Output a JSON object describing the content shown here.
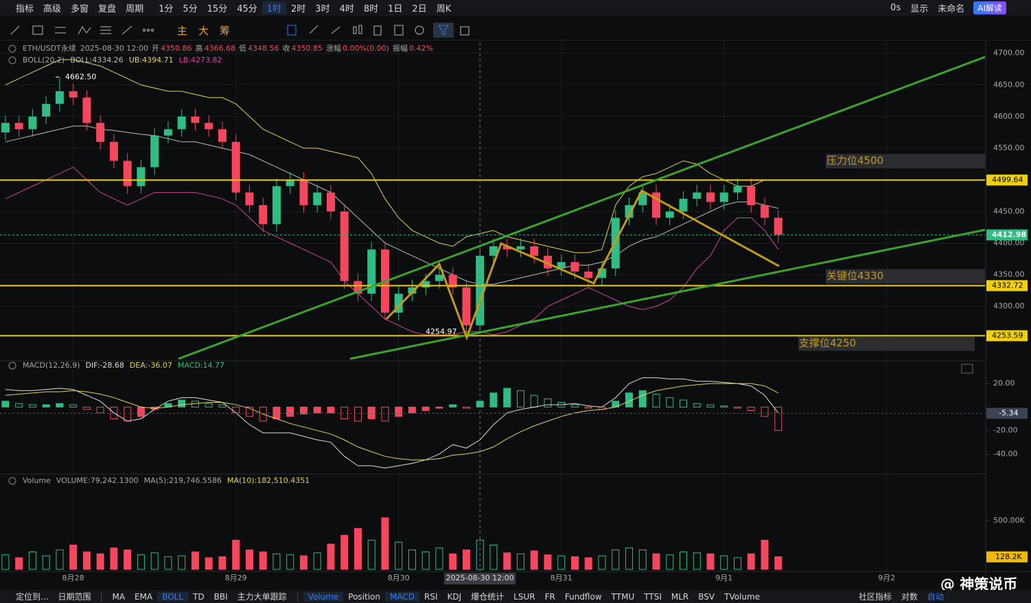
{
  "toolbar": {
    "menus": [
      "指标",
      "高级",
      "多窗",
      "复盘",
      "周期"
    ],
    "periods": [
      "1分",
      "5分",
      "15分",
      "45分",
      "1时",
      "2时",
      "3时",
      "4时",
      "8时",
      "1日",
      "2日",
      "周K"
    ],
    "active_period": "1时",
    "timer": "0s",
    "display": "显示",
    "layout_name": "未命名",
    "ai": "AI解读"
  },
  "drawing_tools": [
    "主",
    "大",
    "筹"
  ],
  "legend": {
    "symbol": "ETH/USDT永续",
    "time": "2025-08-30 12:00",
    "fields": [
      {
        "label": "开",
        "value": "4350.86"
      },
      {
        "label": "高",
        "value": "4366.68"
      },
      {
        "label": "低",
        "value": "4348.56"
      },
      {
        "label": "收",
        "value": "4350.85"
      },
      {
        "label": "涨幅",
        "value": "0.00%(0.00)"
      },
      {
        "label": "振幅",
        "value": "0.42%"
      }
    ]
  },
  "crosshair": {
    "label": "2025-08-30 12:00",
    "x": 35
  },
  "chart_data": [
    {
      "type": "candlestick",
      "indicator": "BOLL(20,2)",
      "indicator_values": [
        "BOLL:4334.26",
        "UB:4394.71",
        "LB:4273.82"
      ],
      "x": [
        0,
        1,
        2,
        3,
        4,
        5,
        6,
        7,
        8,
        9,
        10,
        11,
        12,
        13,
        14,
        15,
        16,
        17,
        18,
        19,
        20,
        21,
        22,
        23,
        24,
        25,
        26,
        27,
        28,
        29,
        30,
        31,
        32,
        33,
        34,
        35,
        36,
        37,
        38,
        39,
        40,
        41,
        42,
        43,
        44,
        45,
        46,
        47,
        48,
        49,
        50,
        51,
        52,
        53,
        54,
        55,
        56,
        57
      ],
      "open": [
        4575,
        4590,
        4580,
        4600,
        4620,
        4640,
        4630,
        4590,
        4560,
        4530,
        4490,
        4520,
        4570,
        4580,
        4600,
        4590,
        4580,
        4560,
        4480,
        4460,
        4430,
        4490,
        4500,
        4460,
        4480,
        4450,
        4340,
        4320,
        4390,
        4290,
        4320,
        4330,
        4340,
        4350,
        4330,
        4270,
        4380,
        4395,
        4390,
        4395,
        4380,
        4360,
        4370,
        4355,
        4345,
        4360,
        4440,
        4460,
        4480,
        4440,
        4450,
        4470,
        4480,
        4465,
        4480,
        4490,
        4460,
        4440
      ],
      "high": [
        4602,
        4602,
        4612,
        4632,
        4662.5,
        4652,
        4642,
        4602,
        4572,
        4542,
        4532,
        4582,
        4592,
        4612,
        4612,
        4602,
        4592,
        4572,
        4492,
        4472,
        4502,
        4512,
        4512,
        4492,
        4492,
        4462,
        4352,
        4402,
        4402,
        4332,
        4342,
        4352,
        4362,
        4362,
        4342,
        4392,
        4407,
        4407,
        4407,
        4407,
        4392,
        4382,
        4382,
        4367,
        4372,
        4452,
        4472,
        4492,
        4492,
        4462,
        4482,
        4492,
        4492,
        4492,
        4502,
        4502,
        4472,
        4452
      ],
      "low": [
        4563,
        4568,
        4568,
        4588,
        4608,
        4618,
        4578,
        4548,
        4518,
        4478,
        4478,
        4508,
        4558,
        4568,
        4578,
        4568,
        4548,
        4468,
        4448,
        4418,
        4418,
        4478,
        4448,
        4448,
        4438,
        4328,
        4308,
        4308,
        4278,
        4278,
        4308,
        4318,
        4328,
        4318,
        4254.97,
        4258,
        4368,
        4378,
        4378,
        4368,
        4348,
        4348,
        4343,
        4333,
        4333,
        4348,
        4428,
        4448,
        4428,
        4428,
        4438,
        4458,
        4453,
        4453,
        4468,
        4448,
        4428,
        4401
      ],
      "close": [
        4590,
        4580,
        4600,
        4620,
        4640,
        4630,
        4590,
        4560,
        4530,
        4490,
        4520,
        4570,
        4580,
        4600,
        4590,
        4580,
        4560,
        4480,
        4460,
        4430,
        4490,
        4500,
        4460,
        4480,
        4450,
        4340,
        4320,
        4390,
        4290,
        4320,
        4330,
        4340,
        4350,
        4330,
        4270,
        4380,
        4395,
        4390,
        4395,
        4380,
        4360,
        4370,
        4355,
        4345,
        4360,
        4440,
        4460,
        4480,
        4440,
        4450,
        4470,
        4480,
        4465,
        4480,
        4490,
        4460,
        4440,
        4413
      ],
      "up_color": "#2ebd85",
      "down_color": "#f6465d",
      "series": [
        {
          "name": "BOLL",
          "color": "#bdbdbd",
          "values": [
            4560,
            4565,
            4570,
            4575,
            4580,
            4585,
            4585,
            4580,
            4578,
            4575,
            4572,
            4570,
            4565,
            4560,
            4560,
            4555,
            4550,
            4545,
            4540,
            4530,
            4520,
            4510,
            4500,
            4490,
            4480,
            4460,
            4440,
            4420,
            4400,
            4390,
            4380,
            4370,
            4360,
            4350,
            4340,
            4335,
            4335,
            4340,
            4345,
            4350,
            4355,
            4360,
            4365,
            4365,
            4370,
            4380,
            4395,
            4405,
            4410,
            4420,
            4430,
            4440,
            4450,
            4460,
            4465,
            4465,
            4460,
            4455
          ]
        },
        {
          "name": "UB",
          "color": "#e8d44d",
          "values": [
            4650,
            4660,
            4670,
            4680,
            4690,
            4690,
            4685,
            4680,
            4670,
            4660,
            4650,
            4645,
            4640,
            4640,
            4635,
            4630,
            4630,
            4620,
            4600,
            4580,
            4570,
            4560,
            4550,
            4550,
            4545,
            4540,
            4535,
            4510,
            4470,
            4440,
            4420,
            4410,
            4400,
            4395,
            4410,
            4415,
            4420,
            4410,
            4405,
            4400,
            4395,
            4390,
            4385,
            4385,
            4390,
            4460,
            4490,
            4505,
            4510,
            4520,
            4530,
            4525,
            4510,
            4500,
            4490,
            4490,
            4500,
            4500
          ]
        },
        {
          "name": "LB",
          "color": "#d0459f",
          "values": [
            4470,
            4480,
            4490,
            4500,
            4510,
            4520,
            4500,
            4480,
            4470,
            4460,
            4470,
            4480,
            4480,
            4480,
            4480,
            4475,
            4470,
            4460,
            4440,
            4420,
            4410,
            4400,
            4390,
            4380,
            4370,
            4340,
            4320,
            4300,
            4280,
            4270,
            4260,
            4255,
            4255,
            4255,
            4260,
            4260,
            4255,
            4260,
            4270,
            4280,
            4300,
            4310,
            4320,
            4330,
            4320,
            4310,
            4300,
            4295,
            4300,
            4310,
            4330,
            4360,
            4380,
            4420,
            4440,
            4440,
            4420,
            4390
          ]
        }
      ],
      "xlim": [
        -0.4,
        72.25
      ],
      "xticks": [
        {
          "value": 5,
          "label": "8月28"
        },
        {
          "value": 17,
          "label": "8月29"
        },
        {
          "value": 29,
          "label": "8月30"
        },
        {
          "value": 41,
          "label": "8月31"
        },
        {
          "value": 53,
          "label": "9月1"
        },
        {
          "value": 65,
          "label": "9月2"
        }
      ],
      "ylim": [
        4215,
        4717
      ],
      "yticks": [
        {
          "value": 4300,
          "label": "4300.00"
        },
        {
          "value": 4350,
          "label": "4350.00"
        },
        {
          "value": 4400,
          "label": "4400.00"
        },
        {
          "value": 4450,
          "label": "4450.00"
        },
        {
          "value": 4500,
          "label": "4500.00"
        },
        {
          "value": 4550,
          "label": "4550.00"
        },
        {
          "value": 4600,
          "label": "4600.00"
        },
        {
          "value": 4650,
          "label": "4650.00"
        },
        {
          "value": 4700,
          "label": "4700.00"
        }
      ],
      "grid": true,
      "annotations": [
        {
          "text": "4662.50",
          "x": 4,
          "y": 4662.5
        },
        {
          "text": "4254.97",
          "x": 34,
          "y": 4254.97
        }
      ],
      "levels": [
        {
          "value": 4499.64,
          "label": "4499.64",
          "note": "压力位4500"
        },
        {
          "value": 4332.72,
          "label": "4332.72",
          "note": "关键位4330"
        },
        {
          "value": 4253.59,
          "label": "4253.59",
          "note": "支撑位4250"
        }
      ],
      "level_color": "#f0d000",
      "last_price": {
        "value": 4412.98,
        "label": "4412.98"
      }
    },
    {
      "type": "macd",
      "title": "MACD(12,26,9)",
      "indicator_values": [
        "DIF:-28.68",
        "DEA:-36.07",
        "MACD:14.77"
      ],
      "values": [
        5,
        3,
        2,
        2,
        3,
        2,
        -2,
        -5,
        -10,
        -12,
        -8,
        -2,
        3,
        6,
        5,
        3,
        2,
        -5,
        -8,
        -12,
        -10,
        -8,
        -6,
        -5,
        -5,
        -10,
        -12,
        -10,
        -12,
        -8,
        -5,
        -3,
        -1,
        2,
        -1,
        5,
        12,
        16,
        14,
        10,
        7,
        4,
        2,
        -1,
        -2,
        5,
        12,
        14,
        11,
        8,
        6,
        3,
        2,
        1,
        -1,
        -3,
        -8,
        -20
      ],
      "series": [
        {
          "name": "DIF",
          "color": "#e0e0e0",
          "values": [
            15,
            14,
            14,
            15,
            16,
            15,
            10,
            5,
            -5,
            -12,
            -10,
            -2,
            5,
            8,
            8,
            6,
            4,
            -5,
            -15,
            -22,
            -22,
            -22,
            -25,
            -28,
            -30,
            -42,
            -50,
            -50,
            -52,
            -50,
            -48,
            -45,
            -40,
            -32,
            -35,
            -28,
            -15,
            -5,
            -2,
            0,
            2,
            2,
            3,
            1,
            0,
            8,
            20,
            25,
            25,
            24,
            24,
            22,
            22,
            21,
            20,
            18,
            10,
            -5
          ]
        },
        {
          "name": "DEA",
          "color": "#e8d44d",
          "values": [
            10,
            11,
            12,
            13,
            13,
            14,
            13,
            11,
            8,
            4,
            0,
            -1,
            0,
            2,
            3,
            4,
            4,
            2,
            -1,
            -6,
            -10,
            -14,
            -17,
            -20,
            -23,
            -28,
            -34,
            -38,
            -42,
            -44,
            -45,
            -45,
            -44,
            -41,
            -40,
            -38,
            -34,
            -27,
            -21,
            -16,
            -12,
            -8,
            -5,
            -3,
            -2,
            0,
            5,
            10,
            14,
            16,
            18,
            19,
            20,
            20,
            20,
            20,
            18,
            12
          ]
        }
      ],
      "up_color": "#2ebd85",
      "down_color": "#f6465d",
      "ylim": [
        -56.5,
        38.8
      ],
      "yticks": [
        {
          "value": 20,
          "label": "20.00"
        },
        {
          "value": -20,
          "label": "-20.00"
        },
        {
          "value": -40,
          "label": "-40.00"
        }
      ],
      "last_value": {
        "value": -5.34,
        "label": "-5.34"
      }
    },
    {
      "type": "volume",
      "title": "Volume",
      "indicator_values": [
        "VOLUME:79,242.1300",
        "MA(5):219,746.5586",
        "MA(10):182,510.4351"
      ],
      "values": [
        150000,
        120000,
        180000,
        140000,
        200000,
        250000,
        180000,
        160000,
        220000,
        200000,
        150000,
        170000,
        130000,
        140000,
        180000,
        120000,
        130000,
        300000,
        200000,
        180000,
        160000,
        150000,
        140000,
        170000,
        260000,
        350000,
        420000,
        300000,
        530000,
        280000,
        200000,
        180000,
        220000,
        160000,
        200000,
        300000,
        250000,
        170000,
        160000,
        190000,
        150000,
        140000,
        130000,
        120000,
        140000,
        200000,
        220000,
        200000,
        160000,
        150000,
        180000,
        170000,
        160000,
        140000,
        120000,
        160000,
        300000,
        130000
      ],
      "up_color": "#2ebd85",
      "down_color": "#f6465d",
      "ylim": [
        0,
        915000
      ],
      "yticks": [
        {
          "value": 500000,
          "label": "500.00K"
        }
      ],
      "last_value": {
        "value": 128200,
        "label": "128.2K"
      }
    }
  ],
  "bottom_bar": {
    "left": [
      "定位到...",
      "日期范围"
    ],
    "main_indicators": [
      "MA",
      "EMA",
      "BOLL",
      "TD",
      "BBI",
      "主力大单跟踪"
    ],
    "active_main": "BOLL",
    "sub_indicators": [
      "Volume",
      "Position",
      "MACD",
      "RSI",
      "KDJ",
      "爆仓统计",
      "LSUR",
      "FR",
      "Fundflow",
      "TTMU",
      "TTSI",
      "MLR",
      "BSV",
      "TVolume"
    ],
    "active_sub": [
      "Volume",
      "MACD"
    ],
    "right": [
      "社区指标",
      "对数",
      "自动"
    ]
  },
  "watermark": "@ 神策说币"
}
